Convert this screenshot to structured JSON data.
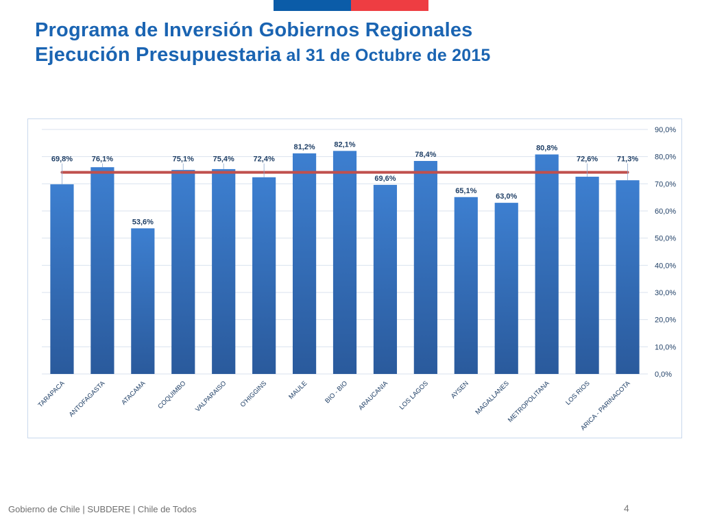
{
  "header": {
    "title_line1": "Programa de Inversión Gobiernos Regionales",
    "title_line2_bold": "Ejecución Presupuestaria",
    "title_line2_rest": " al 31 de Octubre de 2015"
  },
  "footer": {
    "text": "Gobierno de Chile | SUBDERE | Chile de Todos",
    "page_number": "4"
  },
  "colors": {
    "title": "#1a64b2",
    "bar_top": "#3d7fd0",
    "bar_bottom": "#2a5a9c",
    "avg_line": "#c0504d",
    "flag_blue": "#0b5ca8",
    "flag_red": "#ee3d42"
  },
  "chart_data": {
    "type": "bar",
    "title": "",
    "xlabel": "",
    "ylabel": "",
    "ylim": [
      0,
      90
    ],
    "ytick_step": 10,
    "y_tick_labels": [
      "0,0%",
      "10,0%",
      "20,0%",
      "30,0%",
      "40,0%",
      "50,0%",
      "60,0%",
      "70,0%",
      "80,0%",
      "90,0%"
    ],
    "grid": true,
    "categories": [
      "TARAPACA",
      "ANTOFAGASTA",
      "ATACAMA",
      "COQUIMBO",
      "VALPARAISO",
      "O'HIGGINS",
      "MAULE",
      "BIO - BIO",
      "ARAUCANIA",
      "LOS LAGOS",
      "AYSEN",
      "MAGALLANES",
      "METROPOLITANA",
      "LOS RIOS",
      "ARICA - PARINACOTA"
    ],
    "values": [
      69.8,
      76.1,
      53.6,
      75.1,
      75.4,
      72.4,
      81.2,
      82.1,
      69.6,
      78.4,
      65.1,
      63.0,
      80.8,
      72.6,
      71.3
    ],
    "value_labels": [
      "69,8%",
      "76,1%",
      "53,6%",
      "75,1%",
      "75,4%",
      "72,4%",
      "81,2%",
      "82,1%",
      "69,6%",
      "78,4%",
      "65,1%",
      "63,0%",
      "80,8%",
      "72,6%",
      "71,3%"
    ],
    "average_line": 74.2
  }
}
